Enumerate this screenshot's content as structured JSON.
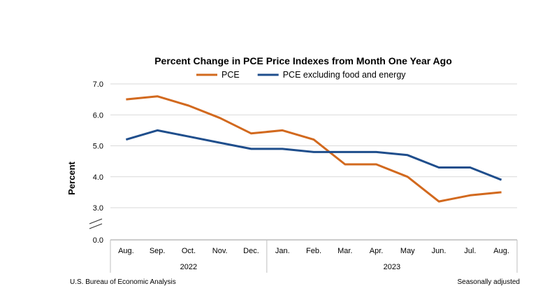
{
  "chart_data": {
    "type": "line",
    "title": "Percent Change in PCE Price Indexes from Month One Year Ago",
    "ylabel": "Percent",
    "xlabel": "",
    "ylim": [
      0.0,
      7.0
    ],
    "yticks": [
      "7.0",
      "6.0",
      "5.0",
      "4.0",
      "3.0",
      "0.0"
    ],
    "axis_break": true,
    "grid": true,
    "legend": "top",
    "categories": [
      "Aug.",
      "Sep.",
      "Oct.",
      "Nov.",
      "Dec.",
      "Jan.",
      "Feb.",
      "Mar.",
      "Apr.",
      "May",
      "Jun.",
      "Jul.",
      "Aug."
    ],
    "year_groups": [
      {
        "label": "2022",
        "count": 5
      },
      {
        "label": "2023",
        "count": 8
      }
    ],
    "series": [
      {
        "name": "PCE",
        "color": "#D2691E",
        "values": [
          6.5,
          6.6,
          6.3,
          5.9,
          5.4,
          5.5,
          5.2,
          4.4,
          4.4,
          4.0,
          3.2,
          3.4,
          3.5
        ]
      },
      {
        "name": "PCE excluding food and energy",
        "color": "#1F4E8C",
        "values": [
          5.2,
          5.5,
          5.3,
          5.1,
          4.9,
          4.9,
          4.8,
          4.8,
          4.8,
          4.7,
          4.3,
          4.3,
          3.9
        ]
      }
    ]
  },
  "footer": {
    "source": "U.S. Bureau of Economic Analysis",
    "note": "Seasonally adjusted"
  }
}
